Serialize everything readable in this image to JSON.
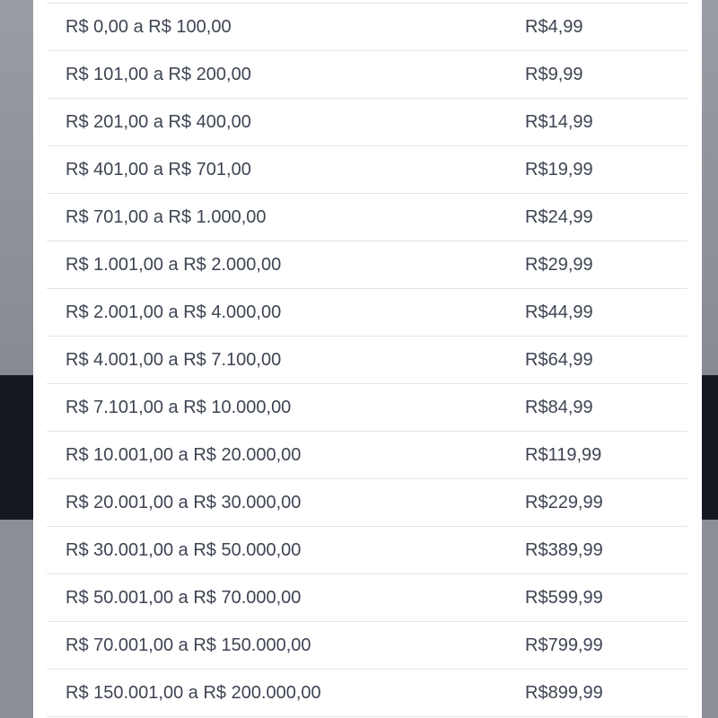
{
  "fee_table": {
    "rows": [
      {
        "range": "R$ 0,00 a R$ 100,00",
        "fee": "R$4,99"
      },
      {
        "range": "R$ 101,00 a R$ 200,00",
        "fee": "R$9,99"
      },
      {
        "range": "R$ 201,00 a R$ 400,00",
        "fee": "R$14,99"
      },
      {
        "range": "R$ 401,00 a R$ 701,00",
        "fee": "R$19,99"
      },
      {
        "range": "R$ 701,00 a R$ 1.000,00",
        "fee": "R$24,99"
      },
      {
        "range": "R$ 1.001,00 a R$ 2.000,00",
        "fee": "R$29,99"
      },
      {
        "range": "R$ 2.001,00 a R$ 4.000,00",
        "fee": "R$44,99"
      },
      {
        "range": "R$ 4.001,00 a R$ 7.100,00",
        "fee": "R$64,99"
      },
      {
        "range": "R$ 7.101,00 a R$ 10.000,00",
        "fee": "R$84,99"
      },
      {
        "range": "R$ 10.001,00 a R$ 20.000,00",
        "fee": "R$119,99"
      },
      {
        "range": "R$ 20.001,00 a R$ 30.000,00",
        "fee": "R$229,99"
      },
      {
        "range": "R$ 30.001,00 a R$ 50.000,00",
        "fee": "R$389,99"
      },
      {
        "range": "R$ 50.001,00 a R$ 70.000,00",
        "fee": "R$599,99"
      },
      {
        "range": "R$ 70.001,00 a R$ 150.000,00",
        "fee": "R$799,99"
      },
      {
        "range": "R$ 150.001,00 a R$ 200.000,00",
        "fee": "R$899,99"
      }
    ]
  }
}
